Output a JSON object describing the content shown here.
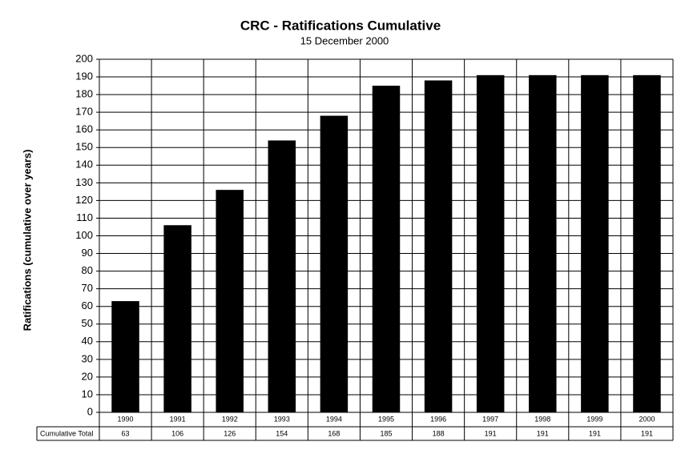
{
  "chart_data": {
    "type": "bar",
    "title": "CRC - Ratifications Cumulative",
    "subtitle": "15 December 2000",
    "y_label": "Ratifications (cumulative over years)",
    "table_row_label": "Cumulative Total",
    "categories": [
      "1990",
      "1991",
      "1992",
      "1993",
      "1994",
      "1995",
      "1996",
      "1997",
      "1998",
      "1999",
      "2000"
    ],
    "values": [
      63,
      106,
      126,
      154,
      168,
      185,
      188,
      191,
      191,
      191,
      191
    ],
    "color": "#000000",
    "ylim": [
      0,
      200
    ],
    "yticks": [
      0,
      10,
      20,
      30,
      40,
      50,
      60,
      70,
      80,
      90,
      100,
      110,
      120,
      130,
      140,
      150,
      160,
      170,
      180,
      190,
      200
    ],
    "grid": true
  }
}
